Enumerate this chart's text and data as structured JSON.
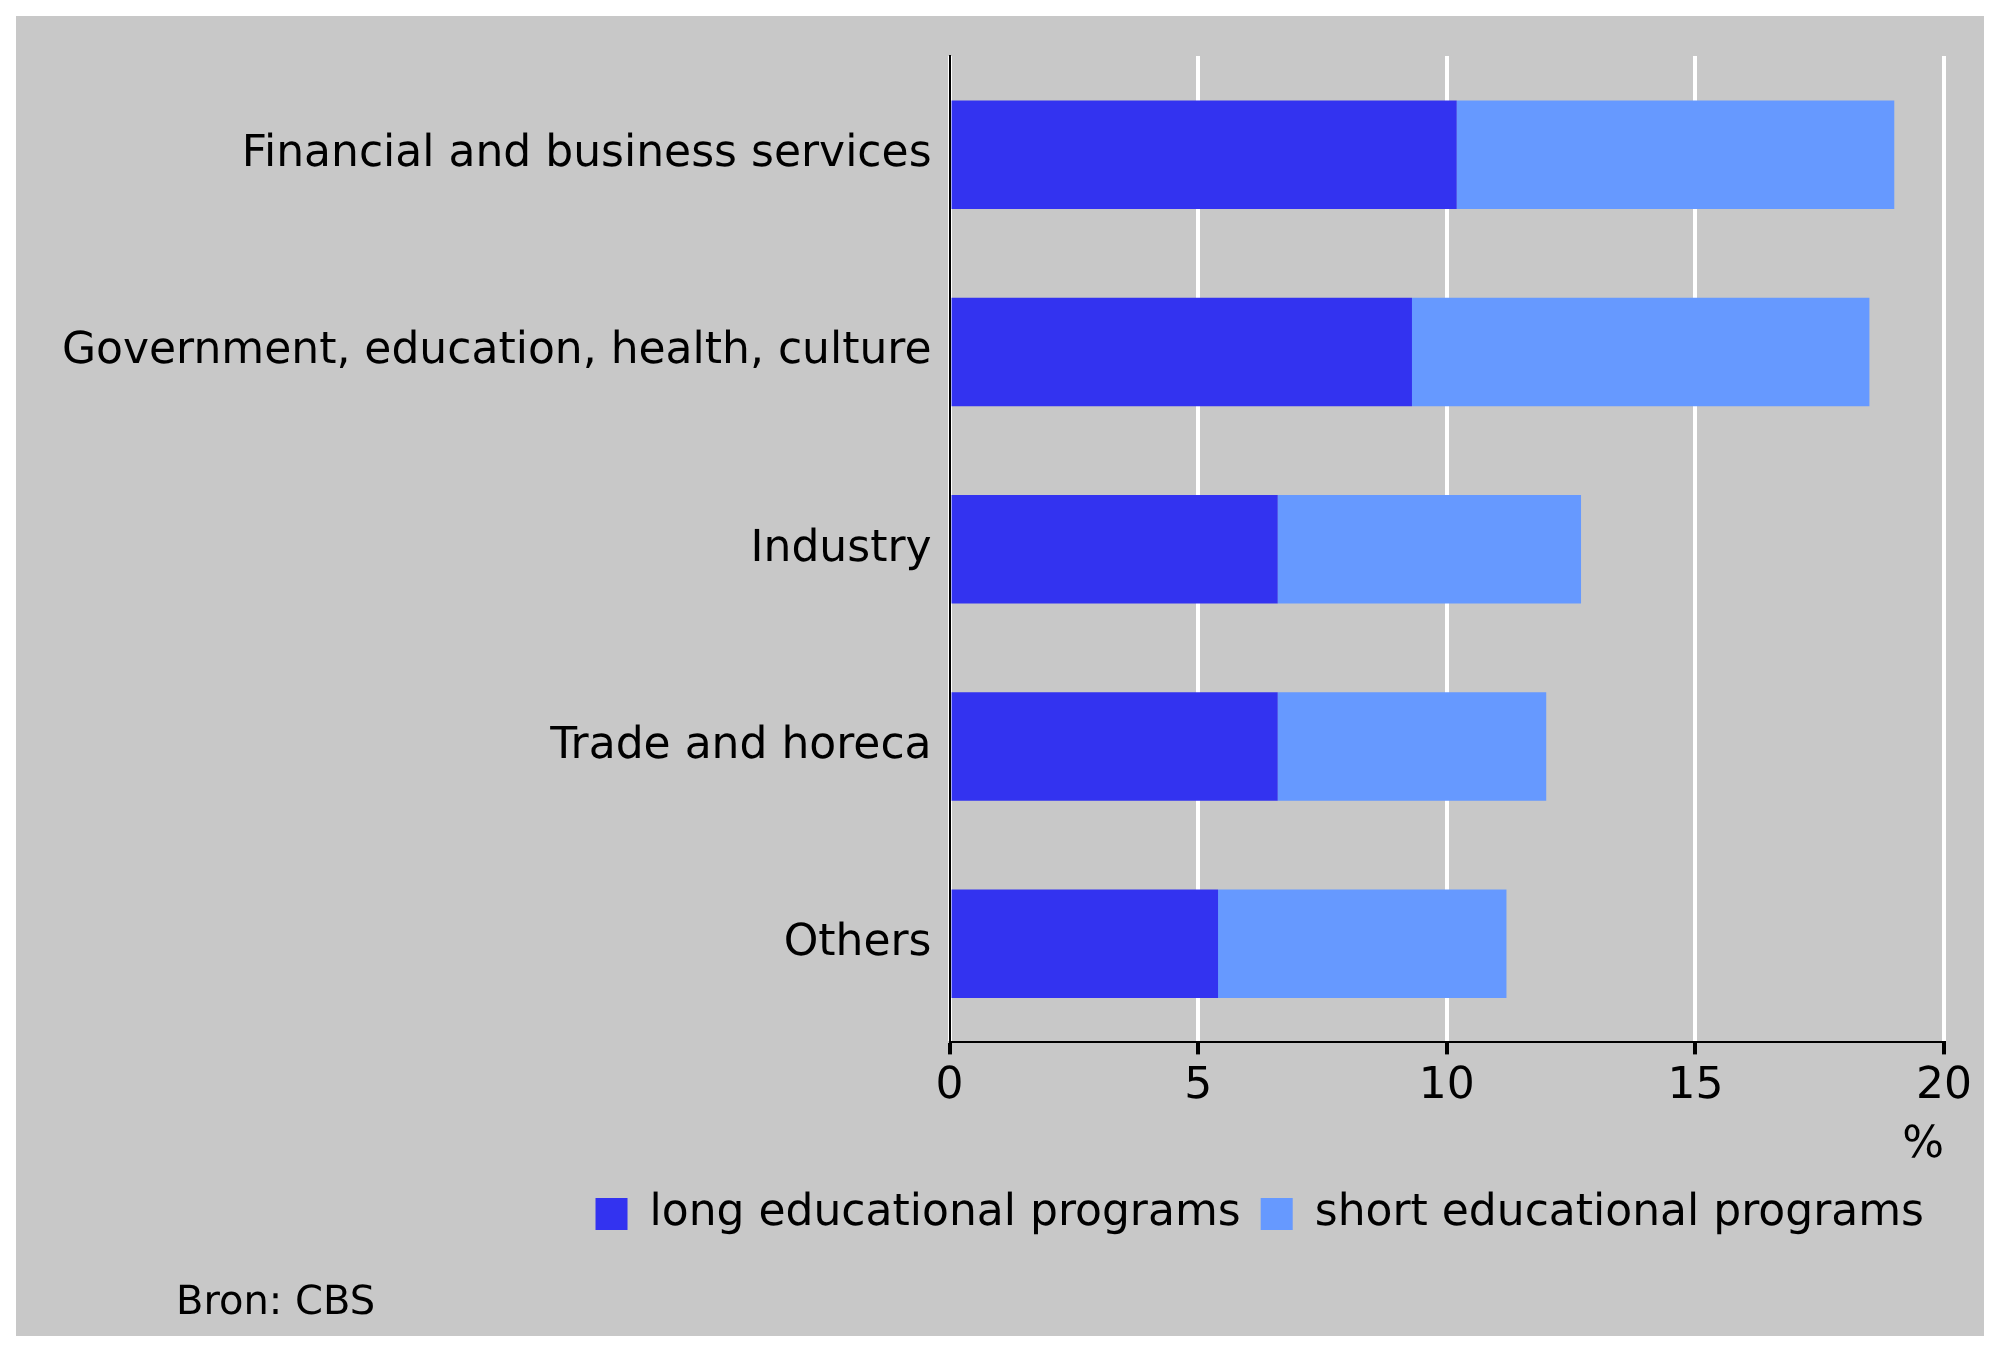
{
  "chart_data": {
    "type": "bar",
    "orientation": "horizontal",
    "stacked": true,
    "categories": [
      "Financial and business services",
      "Government, education, health, culture",
      "Industry",
      "Trade and horeca",
      "Others"
    ],
    "series": [
      {
        "name": "long educational programs",
        "color": "#3333f0",
        "values": [
          10.2,
          9.3,
          6.6,
          6.6,
          5.4
        ]
      },
      {
        "name": "short educational programs",
        "color": "#6699ff",
        "values": [
          8.8,
          9.2,
          6.1,
          5.4,
          5.8
        ]
      }
    ],
    "xlabel": "%",
    "xlim": [
      0,
      20
    ],
    "xticks": [
      0,
      5,
      10,
      15,
      20
    ],
    "grid": "x",
    "legend": "bottom",
    "annotations": [
      "Bron: CBS"
    ]
  }
}
